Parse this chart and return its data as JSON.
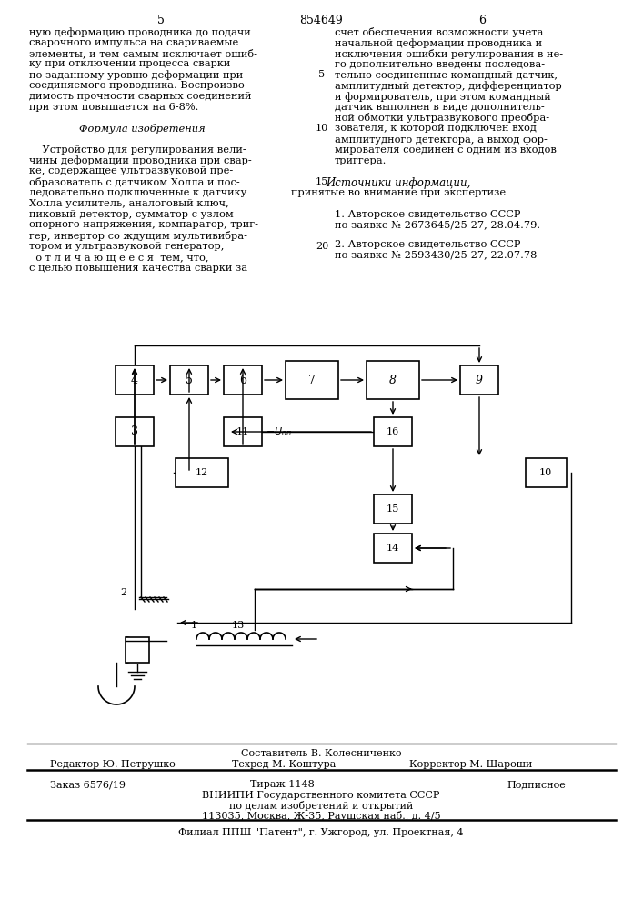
{
  "page_number_left": "5",
  "patent_number": "854649",
  "page_number_right": "6",
  "col_left_text": [
    "ную деформацию проводника до подачи",
    "сварочного импульса на свариваемые",
    "элементы, и тем самым исключает ошиб-",
    "ку при отключении процесса сварки",
    "по заданному уровню деформации при-",
    "соединяемого проводника. Воспроизво-",
    "димость прочности сварных соединений",
    "при этом повышается на 6-8%.",
    "",
    "Формула изобретения",
    "",
    "    Устройство для регулирования вели-",
    "чины деформации проводника при свар-",
    "ке, содержащее ультразвуковой пре-",
    "образователь с датчиком Холла и пос-",
    "ледовательно подключенные к датчику",
    "Холла усилитель, аналоговый ключ,",
    "пиковый детектор, сумматор с узлом",
    "опорного напряжения, компаратор, триг-",
    "гер, инвертор со ждущим мультивибра-",
    "тором и ультразвуковой генератор,",
    "  о т л и ч а ю щ е е с я  тем, что,",
    "с целью повышения качества сварки за"
  ],
  "col_right_text": [
    "счет обеспечения возможности учета",
    "начальной деформации проводника и",
    "исключения ошибки регулирования в не-",
    "го дополнительно введены последова-",
    "тельно соединенные командный датчик,",
    "амплитудный детектор, дифференциатор",
    "и формирователь, при этом командный",
    "датчик выполнен в виде дополнитель-",
    "ной обмотки ультразвукового преобра-",
    "зователя, к которой подключен вход",
    "амплитудного детектора, а выход фор-",
    "мирователя соединен с одним из входов",
    "триггера."
  ],
  "line_num_5_row": 4,
  "line_num_10_row": 9,
  "line_num_15_row": 14,
  "line_num_20_row": 20,
  "sources_header": "Источники информации,",
  "sources_subheader": "принятые во внимание при экспертизе",
  "source1": "1. Авторское свидетельство СССР",
  "source1b": "по заявке № 2673645/25-27, 28.04.79.",
  "source2": "2. Авторское свидетельство СССР",
  "source2b": "по заявке № 2593430/25-27, 22.07.78",
  "footer_compiler": "Составитель В. Колесниченко",
  "footer_editor": "Редактор Ю. Петрушко",
  "footer_techred": "Техред М. Коштура",
  "footer_corrector": "Корректор М. Шароши",
  "footer_order": "Заказ 6576/19",
  "footer_edition": "Тираж 1148",
  "footer_signed": "Подписное",
  "footer_org1": "ВНИИПИ Государственного комитета СССР",
  "footer_org2": "по делам изобретений и открытий",
  "footer_org3": "113035, Москва, Ж-35, Раушская наб., д. 4/5",
  "footer_branch": "Филиал ППШ \"Патент\", г. Ужгород, ул. Проектная, 4",
  "bg_color": "#ffffff",
  "text_color": "#000000"
}
